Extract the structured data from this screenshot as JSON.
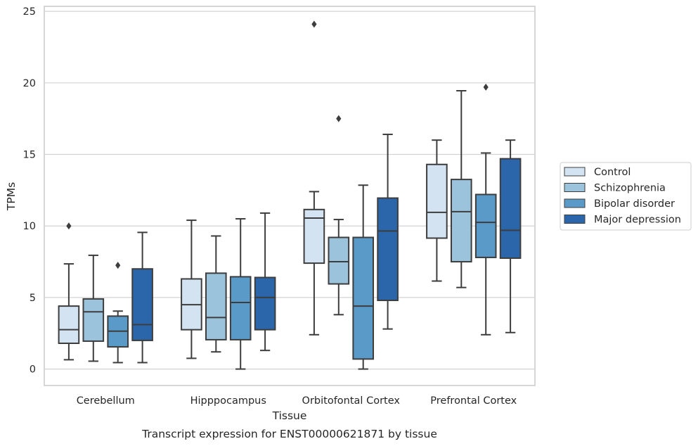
{
  "chart_data": {
    "type": "box",
    "caption": "Transcript expression for ENST00000621871 by tissue",
    "xlabel": "Tissue",
    "ylabel": "TPMs",
    "ylim": [
      -1.15,
      25.35
    ],
    "yticks": [
      0,
      5,
      10,
      15,
      20,
      25
    ],
    "grid": "horizontal",
    "legend_position": "right",
    "categories": [
      "Cerebellum",
      "Hipppocampus",
      "Orbitofontal Cortex",
      "Prefrontal Cortex"
    ],
    "series": [
      {
        "name": "Control",
        "color": "#d4e3f2",
        "boxes": [
          {
            "whisker_low": 0.65,
            "q1": 1.8,
            "median": 2.75,
            "q3": 4.4,
            "whisker_high": 7.35,
            "outliers": [
              10.0
            ]
          },
          {
            "whisker_low": 0.75,
            "q1": 2.75,
            "median": 4.5,
            "q3": 6.3,
            "whisker_high": 10.4,
            "outliers": []
          },
          {
            "whisker_low": 2.4,
            "q1": 7.4,
            "median": 10.55,
            "q3": 11.15,
            "whisker_high": 12.4,
            "outliers": [
              24.1
            ]
          },
          {
            "whisker_low": 6.15,
            "q1": 9.15,
            "median": 10.95,
            "q3": 14.3,
            "whisker_high": 16.0,
            "outliers": []
          }
        ]
      },
      {
        "name": "Schizophrenia",
        "color": "#9cc3dc",
        "boxes": [
          {
            "whisker_low": 0.55,
            "q1": 1.95,
            "median": 4.0,
            "q3": 4.9,
            "whisker_high": 7.95,
            "outliers": []
          },
          {
            "whisker_low": 1.2,
            "q1": 2.05,
            "median": 3.6,
            "q3": 6.7,
            "whisker_high": 9.3,
            "outliers": []
          },
          {
            "whisker_low": 3.8,
            "q1": 5.95,
            "median": 7.5,
            "q3": 9.2,
            "whisker_high": 10.45,
            "outliers": [
              17.5
            ]
          },
          {
            "whisker_low": 5.7,
            "q1": 7.5,
            "median": 11.0,
            "q3": 13.25,
            "whisker_high": 19.45,
            "outliers": []
          }
        ]
      },
      {
        "name": "Bipolar disorder",
        "color": "#5a9ac8",
        "boxes": [
          {
            "whisker_low": 0.45,
            "q1": 1.55,
            "median": 2.65,
            "q3": 3.7,
            "whisker_high": 4.05,
            "outliers": [
              7.25
            ]
          },
          {
            "whisker_low": 0.0,
            "q1": 2.05,
            "median": 4.65,
            "q3": 6.45,
            "whisker_high": 10.5,
            "outliers": []
          },
          {
            "whisker_low": 0.0,
            "q1": 0.7,
            "median": 4.4,
            "q3": 9.2,
            "whisker_high": 12.85,
            "outliers": []
          },
          {
            "whisker_low": 2.4,
            "q1": 7.8,
            "median": 10.25,
            "q3": 12.2,
            "whisker_high": 15.1,
            "outliers": [
              19.7
            ]
          }
        ]
      },
      {
        "name": "Major depression",
        "color": "#2a66a9",
        "boxes": [
          {
            "whisker_low": 0.45,
            "q1": 2.0,
            "median": 3.1,
            "q3": 7.0,
            "whisker_high": 9.55,
            "outliers": []
          },
          {
            "whisker_low": 1.3,
            "q1": 2.75,
            "median": 5.0,
            "q3": 6.4,
            "whisker_high": 10.9,
            "outliers": []
          },
          {
            "whisker_low": 2.8,
            "q1": 4.8,
            "median": 9.65,
            "q3": 11.95,
            "whisker_high": 16.4,
            "outliers": []
          },
          {
            "whisker_low": 2.55,
            "q1": 7.75,
            "median": 9.7,
            "q3": 14.7,
            "whisker_high": 16.0,
            "outliers": []
          }
        ]
      }
    ]
  }
}
